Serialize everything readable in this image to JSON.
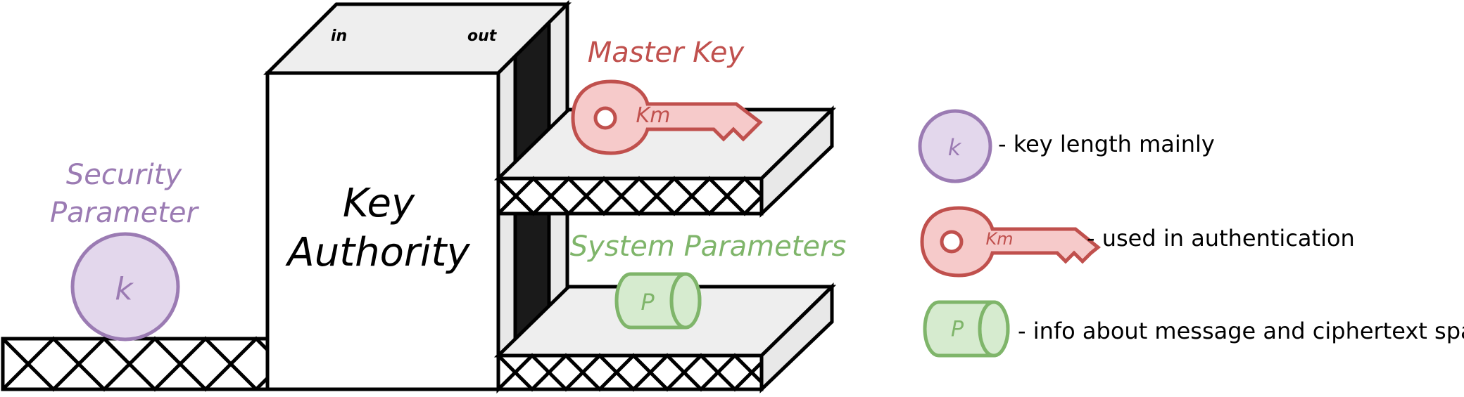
{
  "colors": {
    "purple": "#9b7bb3",
    "purple_fill": "#e3d7ec",
    "red": "#c0504d",
    "red_fill": "#f6caca",
    "green": "#7fb56a",
    "green_fill": "#d6ebcf",
    "outline": "#000000",
    "box_fill": "#ffffff",
    "top_fill": "#eeeeee",
    "dark_slot": "#1a1a1a"
  },
  "key_authority": {
    "title_line1": "Key",
    "title_line2": "Authority",
    "in_label": "in",
    "out_label": "out"
  },
  "security_parameter": {
    "label_line1": "Security",
    "label_line2": "Parameter",
    "symbol": "k"
  },
  "master_key": {
    "label": "Master Key",
    "symbol": "Km"
  },
  "system_parameters": {
    "label": "System Parameters",
    "symbol": "P"
  },
  "legend": [
    {
      "icon": "circle-k-icon",
      "symbol": "k",
      "text": "- key length mainly"
    },
    {
      "icon": "key-icon",
      "symbol": "Km",
      "text": "- used in authentication"
    },
    {
      "icon": "cylinder-p-icon",
      "symbol": "P",
      "text": "- info about message and ciphertext space"
    }
  ]
}
